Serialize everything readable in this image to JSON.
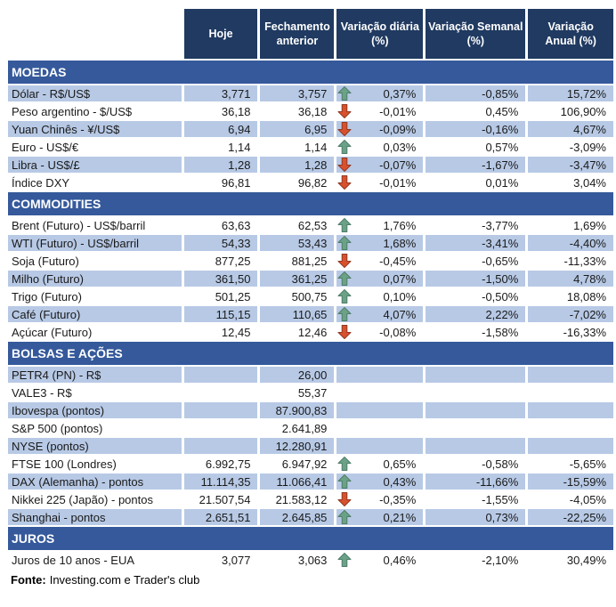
{
  "colors": {
    "header_bg": "#203a61",
    "section_bg": "#35599b",
    "band_bg": "#b7c9e5",
    "arrow_up_fill": "#6ba287",
    "arrow_up_border": "#4e7d68",
    "arrow_down_fill": "#d9512c",
    "arrow_down_border": "#8f3923"
  },
  "header": {
    "columns": [
      {
        "line1": "Hoje",
        "line2": ""
      },
      {
        "line1": "Fechamento",
        "line2": "anterior"
      },
      {
        "line1": "Variação diária",
        "line2": "(%)"
      },
      {
        "line1": "Variação Semanal",
        "line2": "(%)"
      },
      {
        "line1": "Variação",
        "line2": "Anual (%)"
      }
    ]
  },
  "sections": [
    {
      "title": "MOEDAS",
      "rows": [
        {
          "label": "Dólar - R$/US$",
          "hoje": "3,771",
          "fechamento": "3,757",
          "trend": "up",
          "diaria": "0,37%",
          "semanal": "-0,85%",
          "anual": "15,72%"
        },
        {
          "label": "Peso argentino - $/US$",
          "hoje": "36,18",
          "fechamento": "36,18",
          "trend": "down",
          "diaria": "-0,01%",
          "semanal": "0,45%",
          "anual": "106,90%"
        },
        {
          "label": "Yuan Chinês - ¥/US$",
          "hoje": "6,94",
          "fechamento": "6,95",
          "trend": "down",
          "diaria": "-0,09%",
          "semanal": "-0,16%",
          "anual": "4,67%"
        },
        {
          "label": "Euro - US$/€",
          "hoje": "1,14",
          "fechamento": "1,14",
          "trend": "up",
          "diaria": "0,03%",
          "semanal": "0,57%",
          "anual": "-3,09%"
        },
        {
          "label": "Libra - US$/£",
          "hoje": "1,28",
          "fechamento": "1,28",
          "trend": "down",
          "diaria": "-0,07%",
          "semanal": "-1,67%",
          "anual": "-3,47%"
        },
        {
          "label": "Índice DXY",
          "hoje": "96,81",
          "fechamento": "96,82",
          "trend": "down",
          "diaria": "-0,01%",
          "semanal": "0,01%",
          "anual": "3,04%"
        }
      ]
    },
    {
      "title": "COMMODITIES",
      "rows": [
        {
          "label": "Brent (Futuro) - US$/barril",
          "hoje": "63,63",
          "fechamento": "62,53",
          "trend": "up",
          "diaria": "1,76%",
          "semanal": "-3,77%",
          "anual": "1,69%"
        },
        {
          "label": "WTI (Futuro) - US$/barril",
          "hoje": "54,33",
          "fechamento": "53,43",
          "trend": "up",
          "diaria": "1,68%",
          "semanal": "-3,41%",
          "anual": "-4,40%"
        },
        {
          "label": "Soja (Futuro)",
          "hoje": "877,25",
          "fechamento": "881,25",
          "trend": "down",
          "diaria": "-0,45%",
          "semanal": "-0,65%",
          "anual": "-11,33%"
        },
        {
          "label": "Milho (Futuro)",
          "hoje": "361,50",
          "fechamento": "361,25",
          "trend": "up",
          "diaria": "0,07%",
          "semanal": "-1,50%",
          "anual": "4,78%"
        },
        {
          "label": "Trigo (Futuro)",
          "hoje": "501,25",
          "fechamento": "500,75",
          "trend": "up",
          "diaria": "0,10%",
          "semanal": "-0,50%",
          "anual": "18,08%"
        },
        {
          "label": "Café (Futuro)",
          "hoje": "115,15",
          "fechamento": "110,65",
          "trend": "up",
          "diaria": "4,07%",
          "semanal": "2,22%",
          "anual": "-7,02%"
        },
        {
          "label": "Açúcar (Futuro)",
          "hoje": "12,45",
          "fechamento": "12,46",
          "trend": "down",
          "diaria": "-0,08%",
          "semanal": "-1,58%",
          "anual": "-16,33%"
        }
      ]
    },
    {
      "title": "BOLSAS E AÇÕES",
      "rows": [
        {
          "label": "PETR4 (PN) - R$",
          "hoje": "",
          "fechamento": "26,00",
          "trend": null,
          "diaria": "",
          "semanal": "",
          "anual": ""
        },
        {
          "label": "VALE3 - R$",
          "hoje": "",
          "fechamento": "55,37",
          "trend": null,
          "diaria": "",
          "semanal": "",
          "anual": ""
        },
        {
          "label": "Ibovespa (pontos)",
          "hoje": "",
          "fechamento": "87.900,83",
          "trend": null,
          "diaria": "",
          "semanal": "",
          "anual": ""
        },
        {
          "label": "S&P 500 (pontos)",
          "hoje": "",
          "fechamento": "2.641,89",
          "trend": null,
          "diaria": "",
          "semanal": "",
          "anual": ""
        },
        {
          "label": "NYSE (pontos)",
          "hoje": "",
          "fechamento": "12.280,91",
          "trend": null,
          "diaria": "",
          "semanal": "",
          "anual": ""
        },
        {
          "label": "FTSE 100 (Londres)",
          "hoje": "6.992,75",
          "fechamento": "6.947,92",
          "trend": "up",
          "diaria": "0,65%",
          "semanal": "-0,58%",
          "anual": "-5,65%"
        },
        {
          "label": "DAX (Alemanha) - pontos",
          "hoje": "11.114,35",
          "fechamento": "11.066,41",
          "trend": "up",
          "diaria": "0,43%",
          "semanal": "-11,66%",
          "anual": "-15,59%"
        },
        {
          "label": "Nikkei 225 (Japão) - pontos",
          "hoje": "21.507,54",
          "fechamento": "21.583,12",
          "trend": "down",
          "diaria": "-0,35%",
          "semanal": "-1,55%",
          "anual": "-4,05%"
        },
        {
          "label": "Shanghai - pontos",
          "hoje": "2.651,51",
          "fechamento": "2.645,85",
          "trend": "up",
          "diaria": "0,21%",
          "semanal": "0,73%",
          "anual": "-22,25%"
        }
      ]
    },
    {
      "title": "JUROS",
      "rows": [
        {
          "label": "Juros de 10 anos - EUA",
          "hoje": "3,077",
          "fechamento": "3,063",
          "trend": "up",
          "diaria": "0,46%",
          "semanal": "-2,10%",
          "anual": "30,49%"
        }
      ]
    }
  ],
  "footer": {
    "label": "Fonte:",
    "text": "Investing.com e Trader's club"
  }
}
